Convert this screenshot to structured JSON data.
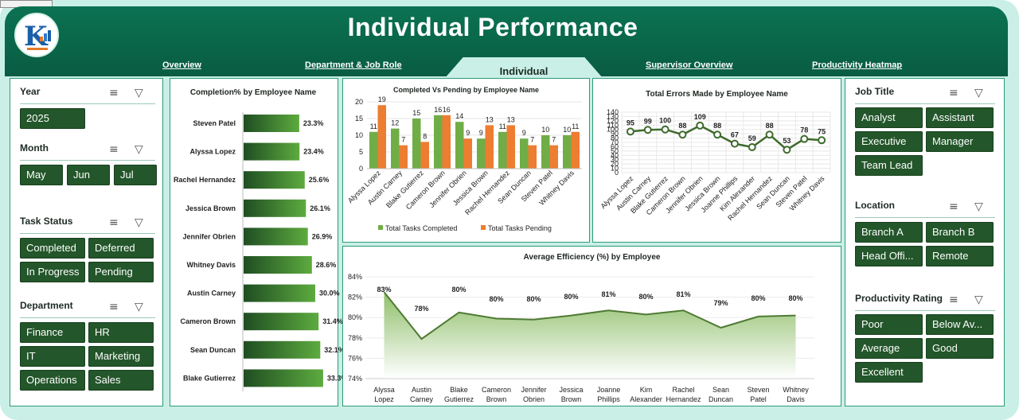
{
  "header": {
    "title": "Individual Performance"
  },
  "nav": {
    "overview": "Overview",
    "department": "Department & Job Role",
    "individual": "Individual",
    "supervisor": "Supervisor Overview",
    "heatmap": "Productivity Heatmap"
  },
  "left": {
    "year": {
      "title": "Year",
      "items": [
        "2025"
      ]
    },
    "month": {
      "title": "Month",
      "items": [
        "May",
        "Jun",
        "Jul"
      ]
    },
    "task_status": {
      "title": "Task Status",
      "items": [
        "Completed",
        "Deferred",
        "In Progress",
        "Pending"
      ]
    },
    "department": {
      "title": "Department",
      "items": [
        "Finance",
        "HR",
        "IT",
        "Marketing",
        "Operations",
        "Sales"
      ]
    }
  },
  "right": {
    "job_title": {
      "title": "Job Title",
      "items": [
        "Analyst",
        "Assistant",
        "Executive",
        "Manager",
        "Team Lead"
      ]
    },
    "location": {
      "title": "Location",
      "items": [
        "Branch A",
        "Branch B",
        "Head Offi...",
        "Remote"
      ]
    },
    "rating": {
      "title": "Productivity Rating",
      "items": [
        "Poor",
        "Below Av...",
        "Average",
        "Good",
        "Excellent"
      ]
    }
  },
  "colors": {
    "green": "#70ad47",
    "orange": "#ed7d31",
    "dark_green": "#23562a",
    "line": "#3f6b2e"
  },
  "chart_data": [
    {
      "type": "bar",
      "orientation": "horizontal",
      "title": "Completion% by Employee Name",
      "categories": [
        "Steven Patel",
        "Alyssa Lopez",
        "Rachel Hernandez",
        "Jessica Brown",
        "Jennifer Obrien",
        "Whitney Davis",
        "Austin Carney",
        "Cameron Brown",
        "Sean Duncan",
        "Blake Gutierrez"
      ],
      "values": [
        23.3,
        23.4,
        25.6,
        26.1,
        26.9,
        28.6,
        30.0,
        31.4,
        32.1,
        33.3
      ],
      "value_labels": [
        "23.3%",
        "23.4%",
        "25.6%",
        "26.1%",
        "26.9%",
        "28.6%",
        "30.0%",
        "31.4%",
        "32.1%",
        "33.3%"
      ],
      "xlim": [
        0,
        40
      ]
    },
    {
      "type": "bar",
      "title": "Completed Vs Pending by Employee Name",
      "categories": [
        "Alyssa Lopez",
        "Austin Carney",
        "Blake Gutierrez",
        "Cameron Brown",
        "Jennifer Obrien",
        "Jessica Brown",
        "Rachel Hernandez",
        "Sean Duncan",
        "Steven Patel",
        "Whitney Davis"
      ],
      "series": [
        {
          "name": "Total Tasks Completed",
          "values": [
            11,
            12,
            15,
            16,
            14,
            9,
            11,
            9,
            10,
            10
          ]
        },
        {
          "name": "Total Tasks Pending",
          "values": [
            19,
            7,
            8,
            16,
            9,
            13,
            13,
            7,
            7,
            11
          ]
        }
      ],
      "yticks": [
        "0",
        "5",
        "10",
        "15",
        "20"
      ],
      "ylim": [
        0,
        20
      ],
      "legend": "bottom"
    },
    {
      "type": "line",
      "title": "Total Errors Made by Employee Name",
      "categories": [
        "Alyssa Lopez",
        "Austin Carney",
        "Blake Gutierrez",
        "Cameron Brown",
        "Jennifer Obrien",
        "Jessica Brown",
        "Joanne Phillips",
        "Kim Alexander",
        "Rachel Hernandez",
        "Sean Duncan",
        "Steven Patel",
        "Whitney Davis"
      ],
      "values": [
        95,
        99,
        100,
        88,
        109,
        88,
        67,
        59,
        88,
        53,
        78,
        75
      ],
      "yticks": [
        "0",
        "10",
        "20",
        "30",
        "40",
        "50",
        "60",
        "70",
        "80",
        "90",
        "100",
        "110",
        "120",
        "130",
        "140"
      ],
      "ylim": [
        0,
        140
      ]
    },
    {
      "type": "area",
      "title": "Average Efficiency (%) by Employee",
      "categories": [
        "Alyssa Lopez",
        "Austin Carney",
        "Blake Gutierrez",
        "Cameron Brown",
        "Jennifer Obrien",
        "Jessica Brown",
        "Joanne Phillips",
        "Kim Alexander",
        "Rachel Hernandez",
        "Sean Duncan",
        "Steven Patel",
        "Whitney Davis"
      ],
      "values": [
        82.5,
        77.9,
        80.5,
        79.9,
        79.8,
        80.2,
        80.7,
        80.3,
        80.7,
        79.0,
        80.1,
        80.2
      ],
      "value_labels": [
        "83%",
        "78%",
        "80%",
        "80%",
        "80%",
        "80%",
        "81%",
        "80%",
        "81%",
        "79%",
        "80%",
        "80%"
      ],
      "yticks": [
        "74%",
        "76%",
        "78%",
        "80%",
        "82%",
        "84%"
      ],
      "ylim": [
        74,
        84
      ]
    }
  ]
}
